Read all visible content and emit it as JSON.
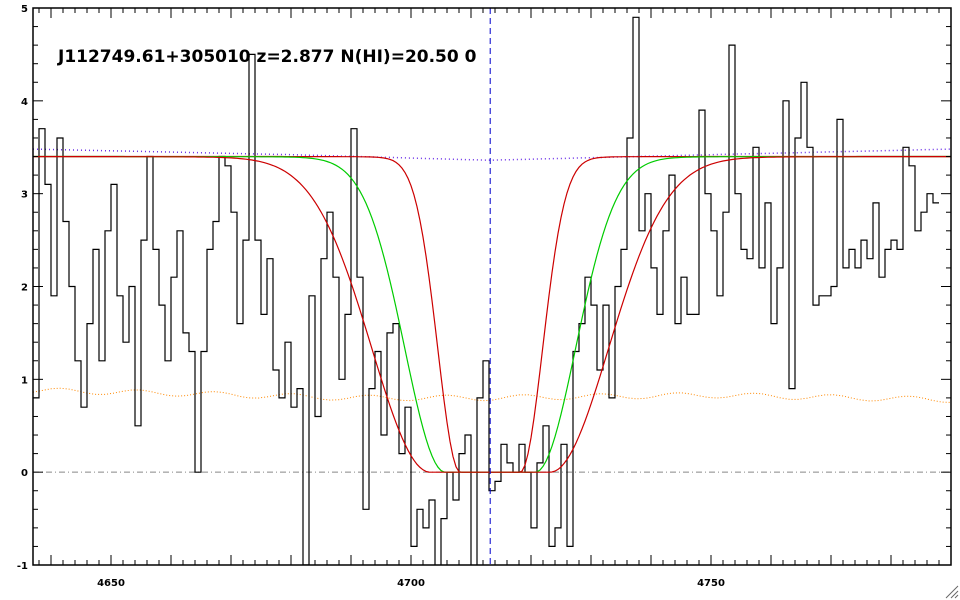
{
  "chart_data": {
    "type": "line",
    "title": "J112749.61+305010 z=2.877 N(HI)=20.50 0",
    "xlabel": "",
    "ylabel": "",
    "xlim": [
      4637,
      4790
    ],
    "ylim": [
      -1,
      5
    ],
    "x_ticks": [
      4650,
      4700,
      4750
    ],
    "x_tick_labels": [
      "4650",
      "4700",
      "4750"
    ],
    "y_ticks": [
      -1,
      0,
      1,
      2,
      3,
      4,
      5
    ],
    "y_tick_labels": [
      "-1",
      "0",
      "1",
      "2",
      "3",
      "4",
      "5"
    ],
    "grid": false,
    "legend": "none",
    "line_center": 4713.2,
    "zero_level": 0,
    "colors": {
      "flux": "#000000",
      "fit": "#00cc00",
      "fit_bounds": "#cc0000",
      "continuum": "#6a2ee8",
      "error": "#ff8800",
      "center_line": "#0000cc",
      "zero_line": "#888888"
    },
    "damped_profile": {
      "center": 4713.2,
      "half_width_core": 7.5,
      "scale": 9.0,
      "offsets": [
        -2.5,
        0,
        2.5
      ]
    },
    "continuum": {
      "x": [
        4637,
        4680,
        4713,
        4750,
        4790
      ],
      "y": [
        3.48,
        3.42,
        3.36,
        3.42,
        3.48
      ]
    },
    "fit_continuum": {
      "x": [
        4637,
        4790
      ],
      "y": [
        3.4,
        3.4
      ]
    },
    "error": {
      "x": [
        4637,
        4660,
        4690,
        4713,
        4750,
        4790
      ],
      "y": [
        0.88,
        0.85,
        0.8,
        0.8,
        0.83,
        0.78
      ]
    },
    "flux": {
      "x_start": 4637.0,
      "step": 1.0,
      "values": [
        0.8,
        3.7,
        3.1,
        1.9,
        3.6,
        2.7,
        2.0,
        1.2,
        0.7,
        1.6,
        2.4,
        1.2,
        2.6,
        3.1,
        1.9,
        1.4,
        2.0,
        0.5,
        2.5,
        3.4,
        2.4,
        1.8,
        1.2,
        2.1,
        2.6,
        1.5,
        1.3,
        0.0,
        1.3,
        2.4,
        2.7,
        3.4,
        3.3,
        2.8,
        1.6,
        2.5,
        4.5,
        2.5,
        1.7,
        2.3,
        1.1,
        0.8,
        1.4,
        0.7,
        0.9,
        -1.0,
        1.9,
        0.6,
        2.3,
        2.8,
        2.1,
        1.0,
        1.7,
        3.7,
        2.1,
        -0.4,
        0.9,
        1.3,
        0.4,
        1.5,
        1.6,
        0.2,
        0.7,
        -0.8,
        -0.4,
        -0.6,
        -0.3,
        -1.2,
        -0.5,
        0.0,
        -0.3,
        0.2,
        0.4,
        -1.2,
        0.8,
        1.2,
        -0.2,
        -0.1,
        0.3,
        0.1,
        0.0,
        0.3,
        0.0,
        -0.6,
        0.1,
        0.5,
        -0.8,
        -0.6,
        0.3,
        -0.8,
        1.3,
        1.6,
        2.1,
        1.8,
        1.1,
        1.8,
        0.8,
        2.0,
        2.4,
        3.6,
        4.9,
        2.6,
        3.0,
        2.2,
        1.7,
        2.6,
        3.2,
        1.6,
        2.1,
        1.7,
        1.7,
        3.9,
        3.0,
        2.6,
        1.9,
        2.8,
        4.6,
        3.0,
        2.4,
        2.3,
        3.5,
        2.2,
        2.9,
        1.6,
        2.2,
        4.0,
        0.9,
        3.6,
        4.2,
        3.5,
        1.8,
        1.9,
        1.9,
        2.0,
        3.8,
        2.2,
        2.4,
        2.2,
        2.5,
        2.3,
        2.9,
        2.1,
        2.4,
        2.5,
        2.4,
        3.5,
        3.3,
        2.6,
        2.8,
        3.0,
        2.9
      ]
    }
  }
}
